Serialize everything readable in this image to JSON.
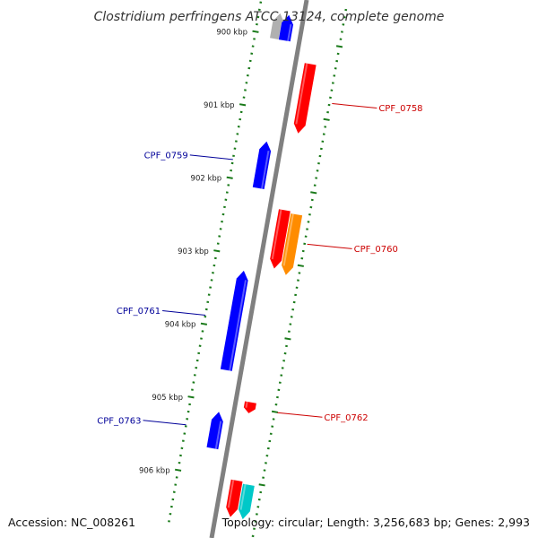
{
  "title": "Clostridium perfringens ATCC 13124, complete genome",
  "accession_text": "Accession: NC_008261",
  "topology_text": "Topology: circular; Length: 3,256,683 bp; Genes: 2,993",
  "colors": {
    "backbone": "#808080",
    "forward_gene": "#ff0000",
    "reverse_gene": "#0000ff",
    "orange_gene": "#ff8c00",
    "cyan_gene": "#00c8c8",
    "grey_gene": "#b0b0b0",
    "ticks": "#1a7a1a",
    "forward_label": "#cc0000",
    "reverse_label": "#000099"
  },
  "scale_labels": [
    "900 kbp",
    "901 kbp",
    "902 kbp",
    "903 kbp",
    "904 kbp",
    "905 kbp",
    "906 kbp"
  ],
  "genes": [
    {
      "name": "",
      "strand": "reverse",
      "start": 899.7,
      "end": 900.05,
      "color": "grey"
    },
    {
      "name": "",
      "strand": "reverse",
      "start": 899.7,
      "end": 900.05,
      "color": "blue"
    },
    {
      "name": "CPF_0758",
      "strand": "forward",
      "start": 900.3,
      "end": 901.25,
      "color": "red"
    },
    {
      "name": "CPF_0759",
      "strand": "reverse",
      "start": 901.43,
      "end": 902.07,
      "color": "blue"
    },
    {
      "name": "CPF_0760",
      "strand": "forward",
      "start": 902.3,
      "end": 903.1,
      "color": "red"
    },
    {
      "name": "",
      "strand": "forward",
      "start": 902.33,
      "end": 903.16,
      "color": "orange"
    },
    {
      "name": "CPF_0761",
      "strand": "reverse",
      "start": 903.2,
      "end": 904.56,
      "color": "blue"
    },
    {
      "name": "CPF_0762",
      "strand": "forward",
      "start": 904.93,
      "end": 905.08,
      "color": "red"
    },
    {
      "name": "CPF_0763",
      "strand": "reverse",
      "start": 905.13,
      "end": 905.63,
      "color": "blue"
    },
    {
      "name": "",
      "strand": "forward",
      "start": 906.0,
      "end": 906.5,
      "color": "red"
    },
    {
      "name": "",
      "strand": "forward",
      "start": 906.03,
      "end": 906.5,
      "color": "cyan"
    }
  ]
}
